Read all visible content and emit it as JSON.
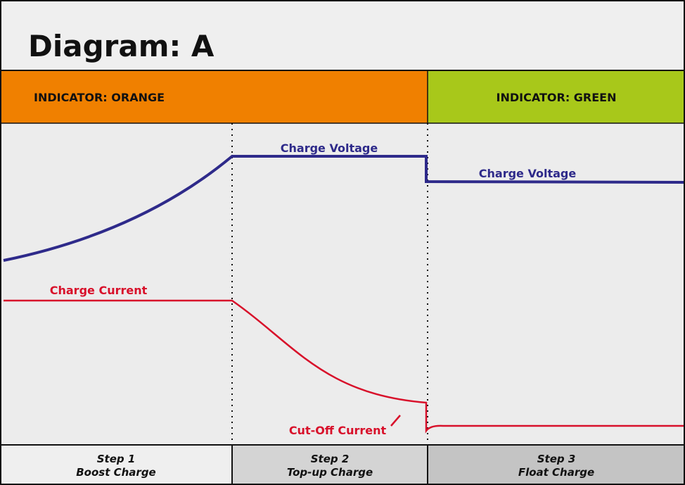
{
  "title": "Diagram: A",
  "indicators": [
    {
      "label": "INDICATOR: ORANGE"
    },
    {
      "label": "INDICATOR: GREEN"
    }
  ],
  "curve_labels": {
    "voltage_step2": "Charge Voltage",
    "voltage_step3": "Charge Voltage",
    "current": "Charge Current",
    "cutoff": "Cut-Off Current"
  },
  "steps": [
    {
      "number": "Step 1",
      "name": "Boost Charge"
    },
    {
      "number": "Step 2",
      "name": "Top-up Charge"
    },
    {
      "number": "Step 3",
      "name": "Float Charge"
    }
  ]
}
